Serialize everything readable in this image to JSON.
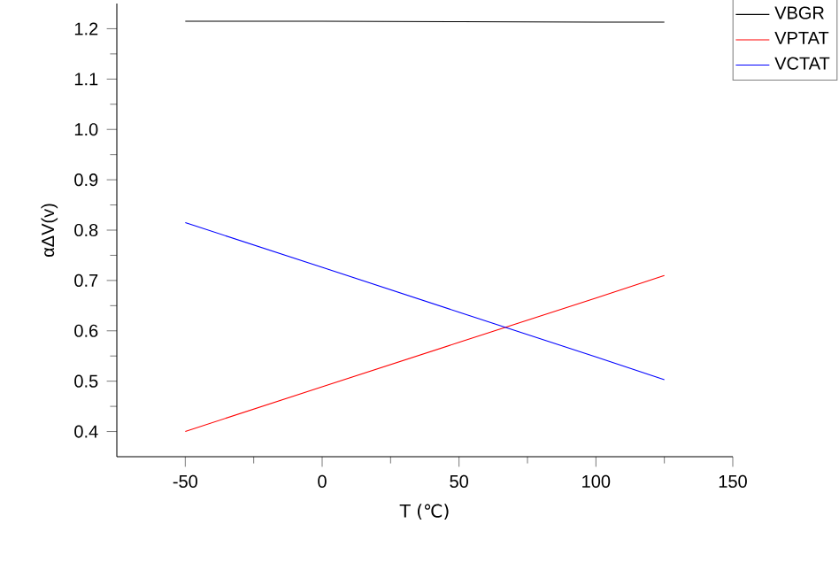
{
  "chart_data": {
    "type": "line",
    "xlabel": "T (℃)",
    "ylabel": "αΔV(v)",
    "xlim": [
      -75,
      150
    ],
    "xticks": [
      -50,
      0,
      50,
      100,
      150
    ],
    "ylim": [
      0.35,
      1.25
    ],
    "yticks": [
      {
        "value": 0.4,
        "label": "0.4"
      },
      {
        "value": 0.5,
        "label": "0.5"
      },
      {
        "value": 0.6,
        "label": "0.6"
      },
      {
        "value": 0.7,
        "label": "0.7"
      },
      {
        "value": 0.8,
        "label": "0.8"
      },
      {
        "value": 0.9,
        "label": "0.9"
      },
      {
        "value": 1.0,
        "label": "1.0"
      },
      {
        "value": 1.1,
        "label": "1.1"
      },
      {
        "value": 1.2,
        "label": "1.2"
      }
    ],
    "x": [
      -50,
      0,
      50,
      100,
      125
    ],
    "legend": "top right",
    "grid": false,
    "marker": "none",
    "line_style": "solid",
    "series": [
      {
        "name": "VBGR",
        "color": "#000000",
        "values": [
          1.215,
          1.215,
          1.214,
          1.213,
          1.213
        ]
      },
      {
        "name": "VPTAT",
        "color": "#ff0000",
        "values": [
          0.4,
          0.489,
          0.577,
          0.665,
          0.71
        ]
      },
      {
        "name": "VCTAT",
        "color": "#0000ff",
        "values": [
          0.815,
          0.726,
          0.637,
          0.548,
          0.503
        ]
      }
    ]
  }
}
